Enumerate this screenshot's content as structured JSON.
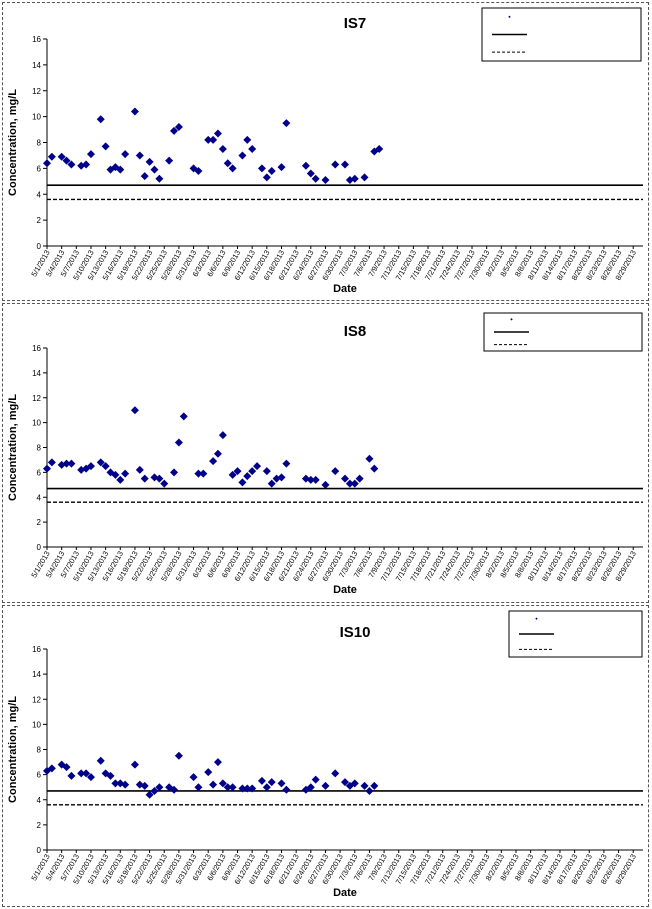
{
  "chart_data": [
    {
      "type": "scatter",
      "title": "IS7",
      "xlabel": "Date",
      "ylabel": "Concentration, mg/L",
      "ylim": [
        0,
        16
      ],
      "yticks": [
        0,
        2,
        4,
        6,
        8,
        10,
        12,
        14,
        16
      ],
      "x_ticks": [
        "5/1/2013",
        "5/4/2013",
        "5/7/2013",
        "5/10/2013",
        "5/13/2013",
        "5/16/2013",
        "5/19/2013",
        "5/22/2013",
        "5/25/2013",
        "5/28/2013",
        "5/31/2013",
        "6/3/2013",
        "6/6/2013",
        "6/9/2013",
        "6/12/2013",
        "6/15/2013",
        "6/18/2013",
        "6/21/2013",
        "6/24/2013",
        "6/27/2013",
        "6/30/2013",
        "7/3/2013",
        "7/6/2013",
        "7/9/2013",
        "7/12/2013",
        "7/15/2013",
        "7/18/2013",
        "7/21/2013",
        "7/24/2013",
        "7/27/2013",
        "7/30/2013",
        "8/2/2013",
        "8/5/2013",
        "8/8/2013",
        "8/11/2013",
        "8/14/2013",
        "8/17/2013",
        "8/20/2013",
        "8/23/2013",
        "8/26/2013",
        "8/29/2013"
      ],
      "x_start": "5/1/2013",
      "x_end": "8/31/2013",
      "legend_position": "top-right",
      "legend_entries": [
        "",
        "",
        ""
      ],
      "points": [
        {
          "x": "5/1/2013",
          "y": 6.4
        },
        {
          "x": "5/2/2013",
          "y": 6.9
        },
        {
          "x": "5/4/2013",
          "y": 6.9
        },
        {
          "x": "5/5/2013",
          "y": 6.6
        },
        {
          "x": "5/6/2013",
          "y": 6.3
        },
        {
          "x": "5/8/2013",
          "y": 6.2
        },
        {
          "x": "5/9/2013",
          "y": 6.3
        },
        {
          "x": "5/10/2013",
          "y": 7.1
        },
        {
          "x": "5/12/2013",
          "y": 9.8
        },
        {
          "x": "5/13/2013",
          "y": 7.7
        },
        {
          "x": "5/14/2013",
          "y": 5.9
        },
        {
          "x": "5/15/2013",
          "y": 6.1
        },
        {
          "x": "5/16/2013",
          "y": 5.9
        },
        {
          "x": "5/17/2013",
          "y": 7.1
        },
        {
          "x": "5/19/2013",
          "y": 10.4
        },
        {
          "x": "5/20/2013",
          "y": 7.0
        },
        {
          "x": "5/21/2013",
          "y": 5.4
        },
        {
          "x": "5/22/2013",
          "y": 6.5
        },
        {
          "x": "5/23/2013",
          "y": 5.9
        },
        {
          "x": "5/24/2013",
          "y": 5.2
        },
        {
          "x": "5/26/2013",
          "y": 6.6
        },
        {
          "x": "5/27/2013",
          "y": 8.9
        },
        {
          "x": "5/28/2013",
          "y": 9.2
        },
        {
          "x": "5/31/2013",
          "y": 6.0
        },
        {
          "x": "6/1/2013",
          "y": 5.8
        },
        {
          "x": "6/3/2013",
          "y": 8.2
        },
        {
          "x": "6/4/2013",
          "y": 8.2
        },
        {
          "x": "6/5/2013",
          "y": 8.7
        },
        {
          "x": "6/6/2013",
          "y": 7.5
        },
        {
          "x": "6/7/2013",
          "y": 6.4
        },
        {
          "x": "6/8/2013",
          "y": 6.0
        },
        {
          "x": "6/10/2013",
          "y": 7.0
        },
        {
          "x": "6/11/2013",
          "y": 8.2
        },
        {
          "x": "6/12/2013",
          "y": 7.5
        },
        {
          "x": "6/14/2013",
          "y": 6.0
        },
        {
          "x": "6/15/2013",
          "y": 5.3
        },
        {
          "x": "6/16/2013",
          "y": 5.8
        },
        {
          "x": "6/18/2013",
          "y": 6.1
        },
        {
          "x": "6/19/2013",
          "y": 9.5
        },
        {
          "x": "6/23/2013",
          "y": 6.2
        },
        {
          "x": "6/24/2013",
          "y": 5.6
        },
        {
          "x": "6/25/2013",
          "y": 5.2
        },
        {
          "x": "6/27/2013",
          "y": 5.1
        },
        {
          "x": "6/29/2013",
          "y": 6.3
        },
        {
          "x": "7/1/2013",
          "y": 6.3
        },
        {
          "x": "7/2/2013",
          "y": 5.1
        },
        {
          "x": "7/3/2013",
          "y": 5.2
        },
        {
          "x": "7/5/2013",
          "y": 5.3
        },
        {
          "x": "7/7/2013",
          "y": 7.3
        },
        {
          "x": "7/8/2013",
          "y": 7.5
        }
      ],
      "lines": [
        {
          "style": "solid",
          "y": 4.7
        },
        {
          "style": "dashed",
          "y": 3.6
        }
      ]
    },
    {
      "type": "scatter",
      "title": "IS8",
      "xlabel": "Date",
      "ylabel": "Concentration, mg/L",
      "ylim": [
        0,
        16
      ],
      "yticks": [
        0,
        2,
        4,
        6,
        8,
        10,
        12,
        14,
        16
      ],
      "x_ticks": [
        "5/1/2013",
        "5/4/2013",
        "5/7/2013",
        "5/10/2013",
        "5/13/2013",
        "5/16/2013",
        "5/19/2013",
        "5/22/2013",
        "5/25/2013",
        "5/28/2013",
        "5/31/2013",
        "6/3/2013",
        "6/6/2013",
        "6/9/2013",
        "6/12/2013",
        "6/15/2013",
        "6/18/2013",
        "6/21/2013",
        "6/24/2013",
        "6/27/2013",
        "6/30/2013",
        "7/3/2013",
        "7/6/2013",
        "7/9/2013",
        "7/12/2013",
        "7/15/2013",
        "7/18/2013",
        "7/21/2013",
        "7/24/2013",
        "7/27/2013",
        "7/30/2013",
        "8/2/2013",
        "8/5/2013",
        "8/8/2013",
        "8/11/2013",
        "8/14/2013",
        "8/17/2013",
        "8/20/2013",
        "8/23/2013",
        "8/26/2013",
        "8/29/2013"
      ],
      "x_start": "5/1/2013",
      "x_end": "8/31/2013",
      "legend_position": "top-right",
      "legend_entries": [
        "",
        "",
        ""
      ],
      "points": [
        {
          "x": "5/1/2013",
          "y": 6.3
        },
        {
          "x": "5/2/2013",
          "y": 6.8
        },
        {
          "x": "5/4/2013",
          "y": 6.6
        },
        {
          "x": "5/5/2013",
          "y": 6.7
        },
        {
          "x": "5/6/2013",
          "y": 6.7
        },
        {
          "x": "5/8/2013",
          "y": 6.2
        },
        {
          "x": "5/9/2013",
          "y": 6.3
        },
        {
          "x": "5/10/2013",
          "y": 6.5
        },
        {
          "x": "5/12/2013",
          "y": 6.8
        },
        {
          "x": "5/13/2013",
          "y": 6.5
        },
        {
          "x": "5/14/2013",
          "y": 6.0
        },
        {
          "x": "5/15/2013",
          "y": 5.8
        },
        {
          "x": "5/16/2013",
          "y": 5.4
        },
        {
          "x": "5/17/2013",
          "y": 5.9
        },
        {
          "x": "5/19/2013",
          "y": 11.0
        },
        {
          "x": "5/20/2013",
          "y": 6.2
        },
        {
          "x": "5/21/2013",
          "y": 5.5
        },
        {
          "x": "5/23/2013",
          "y": 5.6
        },
        {
          "x": "5/24/2013",
          "y": 5.5
        },
        {
          "x": "5/25/2013",
          "y": 5.1
        },
        {
          "x": "5/27/2013",
          "y": 6.0
        },
        {
          "x": "5/28/2013",
          "y": 8.4
        },
        {
          "x": "5/29/2013",
          "y": 10.5
        },
        {
          "x": "6/1/2013",
          "y": 5.9
        },
        {
          "x": "6/2/2013",
          "y": 5.9
        },
        {
          "x": "6/4/2013",
          "y": 6.9
        },
        {
          "x": "6/5/2013",
          "y": 7.5
        },
        {
          "x": "6/6/2013",
          "y": 9.0
        },
        {
          "x": "6/8/2013",
          "y": 5.8
        },
        {
          "x": "6/9/2013",
          "y": 6.1
        },
        {
          "x": "6/10/2013",
          "y": 5.2
        },
        {
          "x": "6/11/2013",
          "y": 5.7
        },
        {
          "x": "6/12/2013",
          "y": 6.1
        },
        {
          "x": "6/13/2013",
          "y": 6.5
        },
        {
          "x": "6/15/2013",
          "y": 6.1
        },
        {
          "x": "6/16/2013",
          "y": 5.1
        },
        {
          "x": "6/17/2013",
          "y": 5.5
        },
        {
          "x": "6/18/2013",
          "y": 5.6
        },
        {
          "x": "6/19/2013",
          "y": 6.7
        },
        {
          "x": "6/23/2013",
          "y": 5.5
        },
        {
          "x": "6/24/2013",
          "y": 5.4
        },
        {
          "x": "6/25/2013",
          "y": 5.4
        },
        {
          "x": "6/27/2013",
          "y": 5.0
        },
        {
          "x": "6/29/2013",
          "y": 6.1
        },
        {
          "x": "7/1/2013",
          "y": 5.5
        },
        {
          "x": "7/2/2013",
          "y": 5.1
        },
        {
          "x": "7/3/2013",
          "y": 5.1
        },
        {
          "x": "7/4/2013",
          "y": 5.5
        },
        {
          "x": "7/6/2013",
          "y": 7.1
        },
        {
          "x": "7/7/2013",
          "y": 6.3
        }
      ],
      "lines": [
        {
          "style": "solid",
          "y": 4.7
        },
        {
          "style": "dashed",
          "y": 3.6
        }
      ]
    },
    {
      "type": "scatter",
      "title": "IS10",
      "xlabel": "Date",
      "ylabel": "Concentration, mg/L",
      "ylim": [
        0,
        16
      ],
      "yticks": [
        0,
        2,
        4,
        6,
        8,
        10,
        12,
        14,
        16
      ],
      "x_ticks": [
        "5/1/2013",
        "5/4/2013",
        "5/7/2013",
        "5/10/2013",
        "5/13/2013",
        "5/16/2013",
        "5/19/2013",
        "5/22/2013",
        "5/25/2013",
        "5/28/2013",
        "5/31/2013",
        "6/3/2013",
        "6/6/2013",
        "6/9/2013",
        "6/12/2013",
        "6/15/2013",
        "6/18/2013",
        "6/21/2013",
        "6/24/2013",
        "6/27/2013",
        "6/30/2013",
        "7/3/2013",
        "7/6/2013",
        "7/9/2013",
        "7/12/2013",
        "7/15/2013",
        "7/18/2013",
        "7/21/2013",
        "7/24/2013",
        "7/27/2013",
        "7/30/2013",
        "8/2/2013",
        "8/5/2013",
        "8/8/2013",
        "8/11/2013",
        "8/14/2013",
        "8/17/2013",
        "8/20/2013",
        "8/23/2013",
        "8/26/2013",
        "8/29/2013"
      ],
      "x_start": "5/1/2013",
      "x_end": "8/31/2013",
      "legend_position": "top-right",
      "legend_entries": [
        "",
        "",
        ""
      ],
      "points": [
        {
          "x": "5/1/2013",
          "y": 6.3
        },
        {
          "x": "5/2/2013",
          "y": 6.5
        },
        {
          "x": "5/4/2013",
          "y": 6.8
        },
        {
          "x": "5/5/2013",
          "y": 6.6
        },
        {
          "x": "5/6/2013",
          "y": 5.9
        },
        {
          "x": "5/8/2013",
          "y": 6.1
        },
        {
          "x": "5/9/2013",
          "y": 6.1
        },
        {
          "x": "5/10/2013",
          "y": 5.8
        },
        {
          "x": "5/12/2013",
          "y": 7.1
        },
        {
          "x": "5/13/2013",
          "y": 6.1
        },
        {
          "x": "5/14/2013",
          "y": 5.9
        },
        {
          "x": "5/15/2013",
          "y": 5.3
        },
        {
          "x": "5/16/2013",
          "y": 5.3
        },
        {
          "x": "5/17/2013",
          "y": 5.2
        },
        {
          "x": "5/19/2013",
          "y": 6.8
        },
        {
          "x": "5/20/2013",
          "y": 5.2
        },
        {
          "x": "5/21/2013",
          "y": 5.1
        },
        {
          "x": "5/22/2013",
          "y": 4.4
        },
        {
          "x": "5/23/2013",
          "y": 4.7
        },
        {
          "x": "5/24/2013",
          "y": 5.0
        },
        {
          "x": "5/26/2013",
          "y": 5.0
        },
        {
          "x": "5/27/2013",
          "y": 4.8
        },
        {
          "x": "5/28/2013",
          "y": 7.5
        },
        {
          "x": "5/31/2013",
          "y": 5.8
        },
        {
          "x": "6/1/2013",
          "y": 5.0
        },
        {
          "x": "6/3/2013",
          "y": 6.2
        },
        {
          "x": "6/4/2013",
          "y": 5.2
        },
        {
          "x": "6/5/2013",
          "y": 7.0
        },
        {
          "x": "6/6/2013",
          "y": 5.3
        },
        {
          "x": "6/7/2013",
          "y": 5.0
        },
        {
          "x": "6/8/2013",
          "y": 5.0
        },
        {
          "x": "6/10/2013",
          "y": 4.9
        },
        {
          "x": "6/11/2013",
          "y": 4.9
        },
        {
          "x": "6/12/2013",
          "y": 4.9
        },
        {
          "x": "6/14/2013",
          "y": 5.5
        },
        {
          "x": "6/15/2013",
          "y": 5.0
        },
        {
          "x": "6/16/2013",
          "y": 5.4
        },
        {
          "x": "6/18/2013",
          "y": 5.3
        },
        {
          "x": "6/19/2013",
          "y": 4.8
        },
        {
          "x": "6/23/2013",
          "y": 4.8
        },
        {
          "x": "6/24/2013",
          "y": 5.0
        },
        {
          "x": "6/25/2013",
          "y": 5.6
        },
        {
          "x": "6/27/2013",
          "y": 5.1
        },
        {
          "x": "6/29/2013",
          "y": 6.1
        },
        {
          "x": "7/1/2013",
          "y": 5.4
        },
        {
          "x": "7/2/2013",
          "y": 5.1
        },
        {
          "x": "7/3/2013",
          "y": 5.3
        },
        {
          "x": "7/5/2013",
          "y": 5.1
        },
        {
          "x": "7/6/2013",
          "y": 4.7
        },
        {
          "x": "7/7/2013",
          "y": 5.1
        }
      ],
      "lines": [
        {
          "style": "solid",
          "y": 4.7
        },
        {
          "style": "dashed",
          "y": 3.6
        }
      ]
    }
  ],
  "colors": {
    "marker": "#00008B",
    "line": "#000000",
    "legend_border": "#000000"
  }
}
